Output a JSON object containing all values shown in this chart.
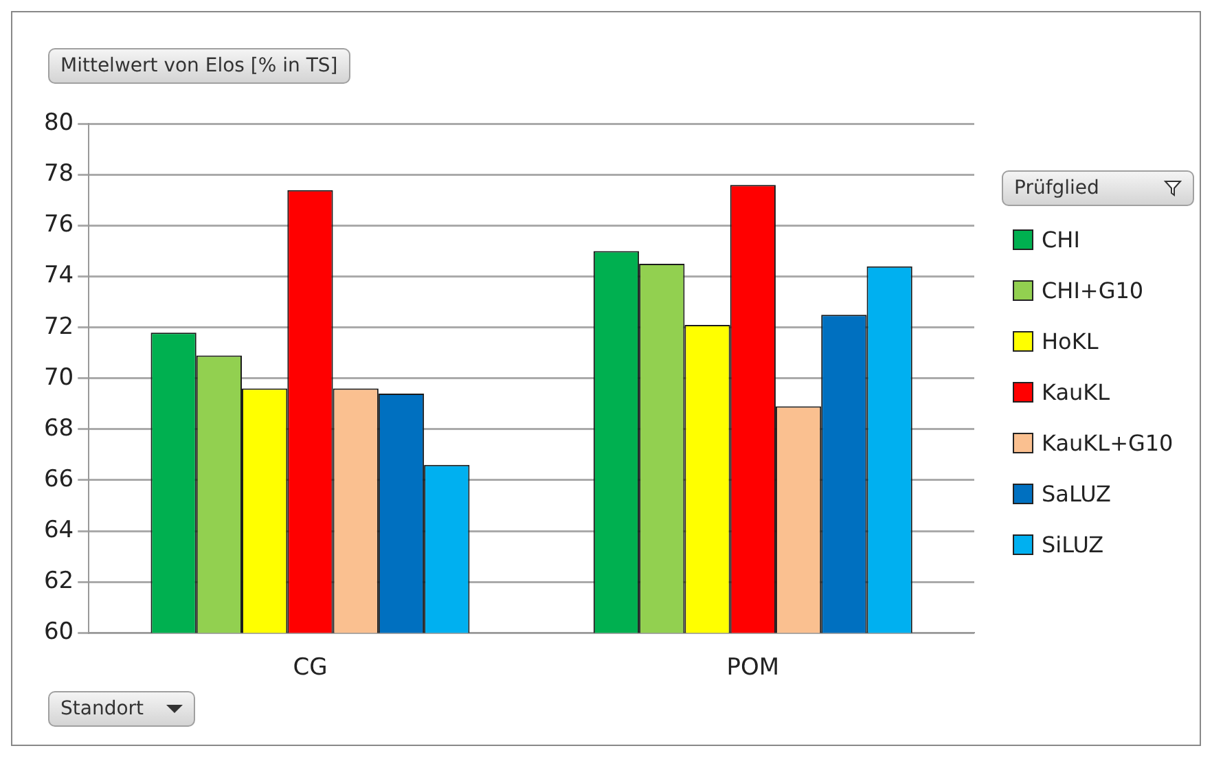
{
  "chart_data": {
    "type": "bar",
    "title": "Mittelwert von Elos [% in TS]",
    "xlabel": "Standort",
    "legend_title": "Prüfglied",
    "categories": [
      "CG",
      "POM"
    ],
    "series": [
      {
        "name": "CHI",
        "color": "#00b050",
        "values": [
          71.8,
          75.0
        ]
      },
      {
        "name": "CHI+G10",
        "color": "#92d050",
        "values": [
          70.9,
          74.5
        ]
      },
      {
        "name": "HoKL",
        "color": "#ffff00",
        "values": [
          69.6,
          72.1
        ]
      },
      {
        "name": "KauKL",
        "color": "#ff0000",
        "values": [
          77.4,
          77.6
        ]
      },
      {
        "name": "KauKL+G10",
        "color": "#fac090",
        "values": [
          69.6,
          68.9
        ]
      },
      {
        "name": "SaLUZ",
        "color": "#0070c0",
        "values": [
          69.4,
          72.5
        ]
      },
      {
        "name": "SiLUZ",
        "color": "#00b0f0",
        "values": [
          66.6,
          74.4
        ]
      }
    ],
    "ylim": [
      60,
      80
    ],
    "yticks": [
      60,
      62,
      64,
      66,
      68,
      70,
      72,
      74,
      76,
      78,
      80
    ],
    "grid": "y",
    "legend": "right"
  }
}
